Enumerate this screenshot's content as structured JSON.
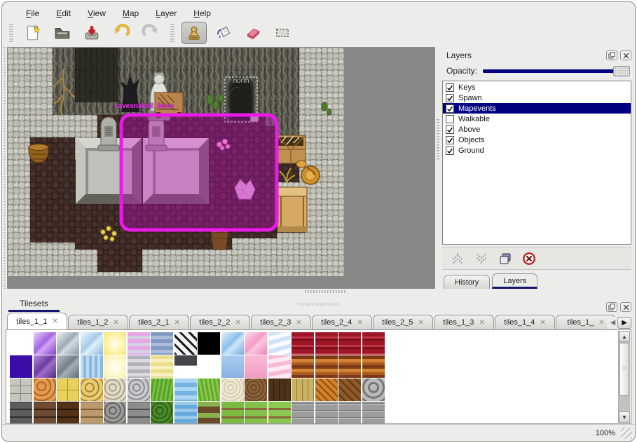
{
  "colors": {
    "selection_magenta": "#ea1aea",
    "highlight_navy": "#000080",
    "tab_underline_navy": "#16166e",
    "delete_red": "#c42020"
  },
  "menu": {
    "items": [
      {
        "key": "F",
        "rest": "ile"
      },
      {
        "key": "E",
        "rest": "dit"
      },
      {
        "key": "V",
        "rest": "iew"
      },
      {
        "key": "M",
        "rest": "ap"
      },
      {
        "key": "L",
        "rest": "ayer"
      },
      {
        "key": "H",
        "rest": "elp"
      }
    ]
  },
  "toolbar": {
    "icons": [
      "new-map-icon",
      "open-icon",
      "save-icon",
      "undo-icon",
      "redo-icon",
      "stamp-tool-icon",
      "fill-tool-icon",
      "eraser-tool-icon",
      "select-tool-icon"
    ],
    "active_tool": "stamp"
  },
  "map": {
    "gate_label": "north",
    "event_label": "cavesnake2_boss"
  },
  "layers_panel": {
    "title": "Layers",
    "opacity_label": "Opacity:",
    "items": [
      {
        "label": "Keys",
        "checked": true,
        "selected": false
      },
      {
        "label": "Spawn",
        "checked": true,
        "selected": false
      },
      {
        "label": "Mapevents",
        "checked": true,
        "selected": true
      },
      {
        "label": "Walkable",
        "checked": false,
        "selected": false
      },
      {
        "label": "Above",
        "checked": true,
        "selected": false
      },
      {
        "label": "Objects",
        "checked": true,
        "selected": false
      },
      {
        "label": "Ground",
        "checked": true,
        "selected": false
      }
    ],
    "buttons": [
      "raise-layer",
      "lower-layer",
      "duplicate-layer",
      "delete-layer"
    ],
    "tabs": [
      {
        "label": "History",
        "active": false
      },
      {
        "label": "Layers",
        "active": true
      }
    ]
  },
  "tilesets_panel": {
    "title": "Tilesets",
    "tab_close_glyph": "✕",
    "tabs": [
      {
        "label": "tiles_1_1",
        "active": true
      },
      {
        "label": "tiles_1_2",
        "active": false
      },
      {
        "label": "tiles_2_1",
        "active": false
      },
      {
        "label": "tiles_2_2",
        "active": false
      },
      {
        "label": "tiles_2_3",
        "active": false
      },
      {
        "label": "tiles_2_4",
        "active": false
      },
      {
        "label": "tiles_2_5",
        "active": false
      },
      {
        "label": "tiles_1_3",
        "active": false
      },
      {
        "label": "tiles_1_4",
        "active": false
      },
      {
        "label": "tiles_1_",
        "active": false
      }
    ]
  },
  "tile_grid": {
    "tile_size": 32,
    "pitch": 33.5,
    "row_pitch": 33,
    "rows": [
      [
        "",
        "linear-gradient(135deg,#ecd2fa,#a266e4 45%,#d4a4f2 58%,#8040cc)",
        "linear-gradient(135deg,#f0f4f6,#9cabb8 45%,#d0dce2 58%,#8894a0)",
        "linear-gradient(135deg,#ecf6fc,#a6cbe8 45%,#dcf0fa 58%,#8cb6da)",
        "radial-gradient(circle,#fffef2 0%,#fdf3a6 55%,#f6e272 100%)",
        "repeating-linear-gradient(180deg,#e8a6e8 0 5px,#d2d2e2 5px 10px)",
        "repeating-linear-gradient(180deg,#8099c2 0 5px,#aabcd8 5px 10px)",
        "repeating-linear-gradient(45deg,#1c1c1c 0 3px,#f4f4f4 3px 9px),repeating-linear-gradient(-45deg,#1c1c1c 0 3px,rgba(244,244,244,0) 3px 9px)",
        "#000000",
        "linear-gradient(135deg,#def0fc,#8cc0ea 45%,#cce8fa 58%,#74aade)",
        "linear-gradient(135deg,#fde0ee,#f29cc4 45%,#fac8e0 58%,#ea82b2)",
        "repeating-linear-gradient(165deg,#cde2f6 0 6px,#f8fcfe 6px 12px)",
        "repeating-linear-gradient(180deg,#9c1626 0 6px,#c23446 6px 9px,#7c0e1e 9px 12px)",
        "repeating-linear-gradient(180deg,#9c1626 0 6px,#c23446 6px 9px,#7c0e1e 9px 12px)",
        "repeating-linear-gradient(180deg,#9c1626 0 6px,#c23446 6px 9px,#7c0e1e 9px 12px)",
        "repeating-linear-gradient(180deg,#9c1626 0 6px,#c23446 6px 9px,#7c0e1e 9px 12px)"
      ],
      [
        "#3a0ca8",
        "linear-gradient(135deg,#b68cda,#6c3ca2 45%,#9c70ca 58%,#522a7e)",
        "linear-gradient(135deg,#bcc4cc,#737f8b 45%,#a2aeb6 58%,#5e6a76)",
        "repeating-linear-gradient(90deg,#bcdaf2 0 4px,#8ab8e2 4px 8px)",
        "radial-gradient(circle,#fffff6 0%,#fdf6ca 60%,#faeea2 100%)",
        "repeating-linear-gradient(180deg,#b2b2ba 0 5px,#dadade 5px 10px)",
        "repeating-linear-gradient(180deg,#e9dd8a 0 5px,#f7f1c2 5px 10px)",
        "linear-gradient(180deg,#46464a 0 42%,#2e2e30 42% 46%,#ffffff 46%)",
        "",
        "linear-gradient(180deg,#aacdf0,#88b2e2)",
        "linear-gradient(180deg,#f9bad2,#f09cc2)",
        "repeating-linear-gradient(170deg,#f6bad6 0 6px,#fdeaf4 6px 12px)",
        "repeating-linear-gradient(180deg,#7c3a18 0 5px,#d28432 5px 10px,#aa5a20 10px 14px)",
        "repeating-linear-gradient(180deg,#7c3a18 0 5px,#d28432 5px 10px,#aa5a20 10px 14px)",
        "repeating-linear-gradient(180deg,#7c3a18 0 5px,#d28432 5px 10px,#aa5a20 10px 14px)",
        "repeating-linear-gradient(180deg,#7c3a18 0 5px,#d28432 5px 10px,#aa5a20 10px 14px)"
      ],
      [
        "repeating-linear-gradient(0deg,rgba(131,131,123,0) 0 10px,#83837b 10px 11px),repeating-linear-gradient(90deg,#c6c6be 0 15px,#83837b 15px 16px)",
        "repeating-radial-gradient(circle at 35% 35%,#e69a50 0 5px,#aa6424 5px 7px)",
        "repeating-linear-gradient(0deg,rgba(176,144,40,0) 0 15px,#b09028 15px 16px),repeating-linear-gradient(90deg,#ecd05c 0 15px,#b09028 15px 16px)",
        "repeating-radial-gradient(circle at 40% 40%,#e8cc74 0 5px,#a8842c 5px 7px)",
        "repeating-radial-gradient(circle at 40% 40%,#e2dac4 0 4px,#aaa28a 4px 6px)",
        "repeating-radial-gradient(circle at 40% 40%,#cacaca 0 4px,#8a8a92 4px 6px)",
        "repeating-linear-gradient(100deg,#7ac242 0 3px,#57a026 3px 6px)",
        "repeating-linear-gradient(180deg,#aad6f2 0 6px,#76b2e0 6px 12px)",
        "repeating-linear-gradient(80deg,#8aca4a 0 3px,#66a82e 3px 6px)",
        "repeating-radial-gradient(circle at 40% 40%,#f0e8d2 0 3px,#d8ccb2 3px 5px)",
        "repeating-radial-gradient(circle at 40% 40%,#8c6239 0 3px,#69472a 3px 5px)",
        "repeating-linear-gradient(90deg,#4c3218 0 7px,#2e1c0c 7px 8px)",
        "repeating-linear-gradient(90deg,#cab262 0 7px,#927e3a 7px 8px)",
        "repeating-linear-gradient(45deg,#d28229 0 5px,#914c10 5px 7px),repeating-linear-gradient(-45deg,#e29238 0 5px,rgba(145,76,16,0) 5px 7px)",
        "repeating-linear-gradient(45deg,#8c5a29 0 6px,#5e3515 6px 8px)",
        "repeating-radial-gradient(circle at 50% 40%,#bababa 0 5px,#777777 5px 8px)"
      ],
      [
        "repeating-linear-gradient(0deg,#5c5c5c 0 9px,#2e2e2e 9px 11px)",
        "repeating-linear-gradient(0deg,#6c4b31 0 9px,#38220f 9px 11px)",
        "repeating-linear-gradient(0deg,#523119 0 9px,#281606 9px 11px)",
        "repeating-linear-gradient(0deg,#ba9a6a 0 9px,#7c5e34 9px 11px)",
        "repeating-radial-gradient(circle at 40% 40%,#9c9c98 0 4px,#62625e 4px 6px)",
        "repeating-linear-gradient(0deg,#8c8c8c 0 9px,#4e4e4e 9px 11px)",
        "repeating-radial-gradient(circle at 40% 40%,#4b8a29 0 4px,#2e5c14 4px 6px)",
        "repeating-linear-gradient(180deg,#9ac9ec 0 5px,#66a8da 5px 10px)",
        "repeating-linear-gradient(180deg,#8ab24a 0 7px,#6a4828 7px 16px)",
        "repeating-linear-gradient(180deg,#7ab942 0 9px,#8a6838 9px 12px)",
        "repeating-linear-gradient(180deg,#83c04a 0 9px,#8a6838 9px 12px)",
        "repeating-linear-gradient(180deg,#8bc752 0 9px,#8a6838 9px 12px)",
        "repeating-linear-gradient(0deg,#9c9c9c 0 8px,#d8d8d8 8px 9px,#6e6e6e 9px 10px)",
        "repeating-linear-gradient(0deg,#9c9c9c 0 8px,#d8d8d8 8px 9px,#6e6e6e 9px 10px)",
        "repeating-linear-gradient(0deg,#9c9c9c 0 8px,#d8d8d8 8px 9px,#6e6e6e 9px 10px)",
        "repeating-linear-gradient(0deg,#9c9c9c 0 8px,#d8d8d8 8px 9px,#6e6e6e 9px 10px)"
      ]
    ]
  },
  "status_bar": {
    "zoom_level": "100%"
  }
}
